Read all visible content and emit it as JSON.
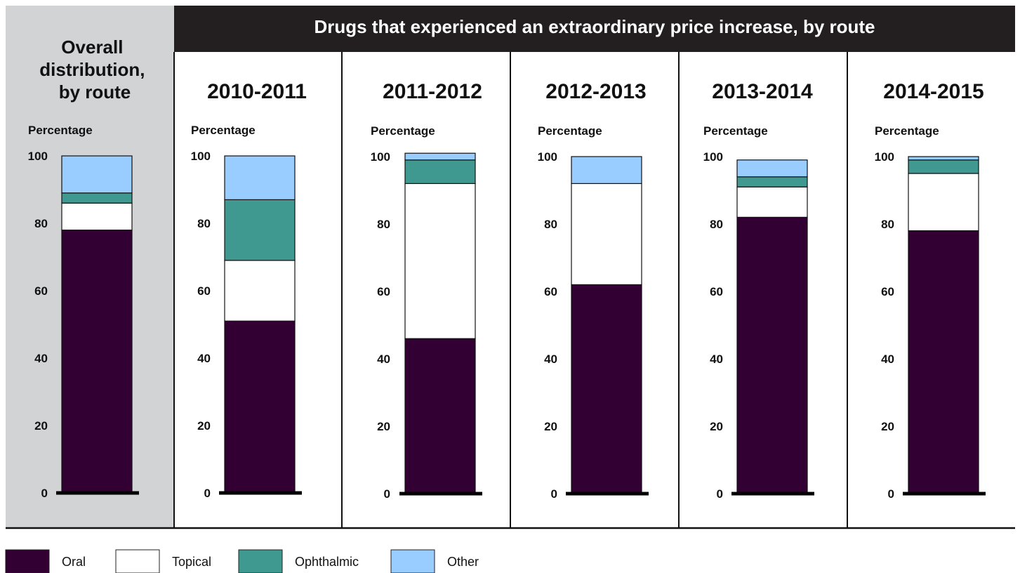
{
  "header": {
    "title": "Drugs that experienced an extraordinary price increase, by route"
  },
  "colors": {
    "oral": "#330033",
    "topical": "#ffffff",
    "ophthalmic": "#3f9990",
    "other": "#99ccff",
    "overall_panel_bg": "#d1d3d4",
    "header_bg": "#231f20"
  },
  "chart_data": [
    {
      "type": "bar",
      "stacked": true,
      "title": "Overall distribution, by route",
      "title_lines": [
        "Overall",
        "distribution,",
        "by route"
      ],
      "ylabel": "Percentage",
      "ylim": [
        0,
        100
      ],
      "yticks": [
        "0",
        "20",
        "40",
        "60",
        "80",
        "100"
      ],
      "series": [
        {
          "name": "Oral",
          "values": [
            78
          ]
        },
        {
          "name": "Topical",
          "values": [
            8
          ]
        },
        {
          "name": "Ophthalmic",
          "values": [
            3
          ]
        },
        {
          "name": "Other",
          "values": [
            11
          ]
        }
      ]
    },
    {
      "type": "bar",
      "stacked": true,
      "title": "2010-2011",
      "ylabel": "Percentage",
      "ylim": [
        0,
        100
      ],
      "yticks": [
        "0",
        "20",
        "40",
        "60",
        "80",
        "100"
      ],
      "series": [
        {
          "name": "Oral",
          "values": [
            51
          ]
        },
        {
          "name": "Topical",
          "values": [
            18
          ]
        },
        {
          "name": "Ophthalmic",
          "values": [
            18
          ]
        },
        {
          "name": "Other",
          "values": [
            13
          ]
        }
      ]
    },
    {
      "type": "bar",
      "stacked": true,
      "title": "2011-2012",
      "ylabel": "Percentage",
      "ylim": [
        0,
        100
      ],
      "yticks": [
        "0",
        "20",
        "40",
        "60",
        "80",
        "100"
      ],
      "series": [
        {
          "name": "Oral",
          "values": [
            46
          ]
        },
        {
          "name": "Topical",
          "values": [
            46
          ]
        },
        {
          "name": "Ophthalmic",
          "values": [
            7
          ]
        },
        {
          "name": "Other",
          "values": [
            2
          ]
        }
      ]
    },
    {
      "type": "bar",
      "stacked": true,
      "title": "2012-2013",
      "ylabel": "Percentage",
      "ylim": [
        0,
        100
      ],
      "yticks": [
        "0",
        "20",
        "40",
        "60",
        "80",
        "100"
      ],
      "series": [
        {
          "name": "Oral",
          "values": [
            62
          ]
        },
        {
          "name": "Topical",
          "values": [
            30
          ]
        },
        {
          "name": "Ophthalmic",
          "values": [
            0
          ]
        },
        {
          "name": "Other",
          "values": [
            8
          ]
        }
      ]
    },
    {
      "type": "bar",
      "stacked": true,
      "title": "2013-2014",
      "ylabel": "Percentage",
      "ylim": [
        0,
        100
      ],
      "yticks": [
        "0",
        "20",
        "40",
        "60",
        "80",
        "100"
      ],
      "series": [
        {
          "name": "Oral",
          "values": [
            82
          ]
        },
        {
          "name": "Topical",
          "values": [
            9
          ]
        },
        {
          "name": "Ophthalmic",
          "values": [
            3
          ]
        },
        {
          "name": "Other",
          "values": [
            5
          ]
        }
      ]
    },
    {
      "type": "bar",
      "stacked": true,
      "title": "2014-2015",
      "ylabel": "Percentage",
      "ylim": [
        0,
        100
      ],
      "yticks": [
        "0",
        "20",
        "40",
        "60",
        "80",
        "100"
      ],
      "series": [
        {
          "name": "Oral",
          "values": [
            78
          ]
        },
        {
          "name": "Topical",
          "values": [
            17
          ]
        },
        {
          "name": "Ophthalmic",
          "values": [
            4
          ]
        },
        {
          "name": "Other",
          "values": [
            1
          ]
        }
      ]
    }
  ],
  "legend": {
    "items": [
      {
        "label": "Oral",
        "color": "#330033"
      },
      {
        "label": "Topical",
        "color": "#ffffff"
      },
      {
        "label": "Ophthalmic",
        "color": "#3f9990"
      },
      {
        "label": "Other",
        "color": "#99ccff"
      }
    ]
  }
}
